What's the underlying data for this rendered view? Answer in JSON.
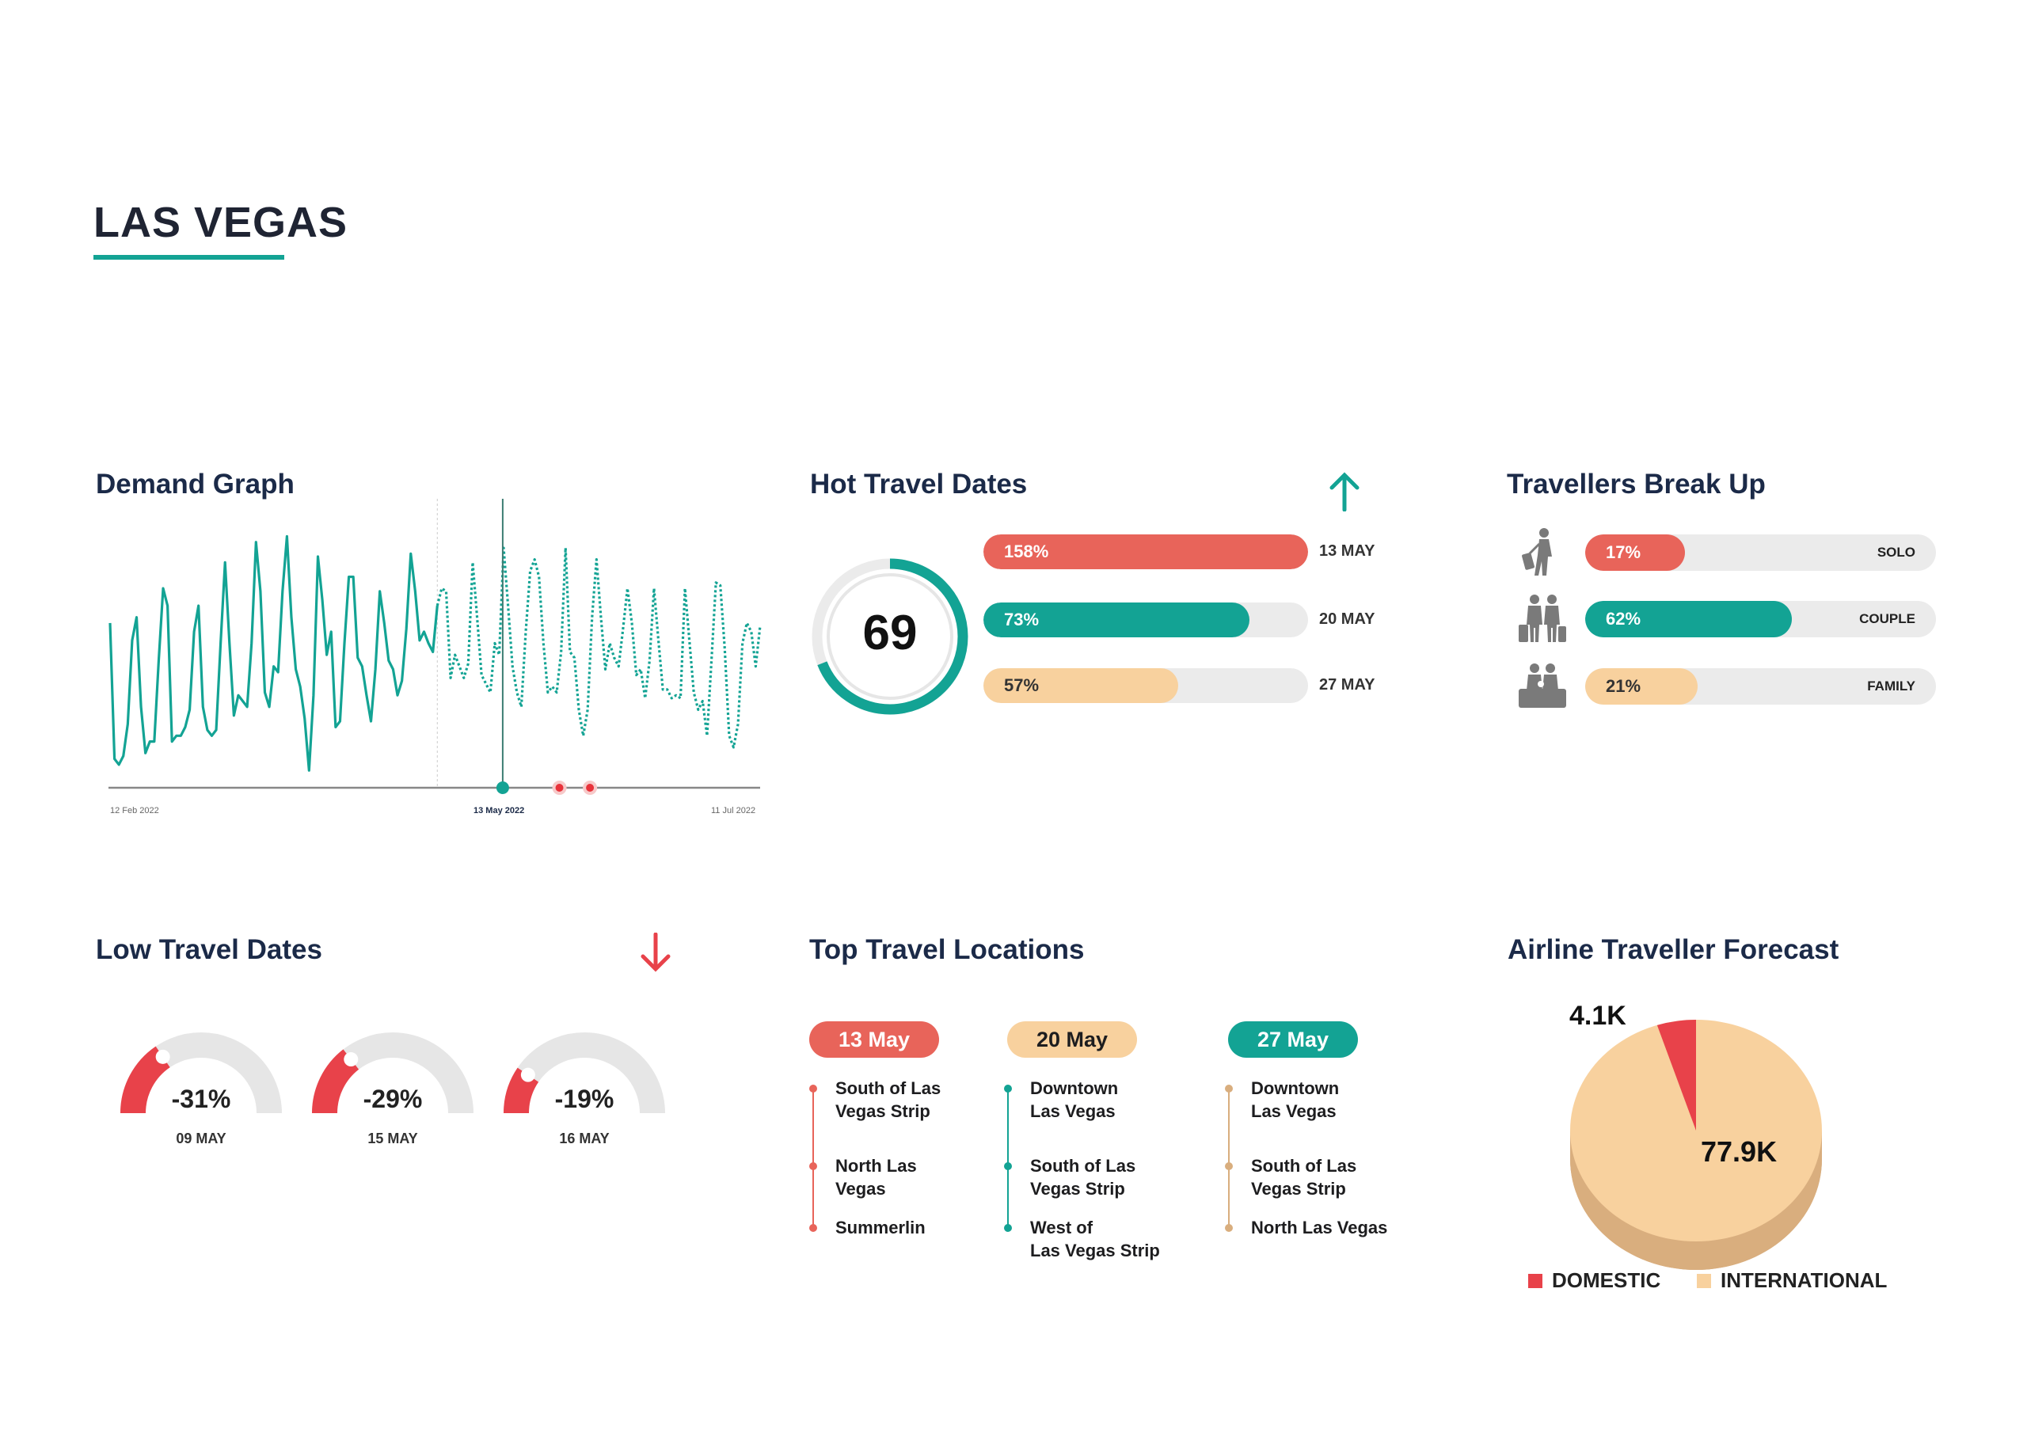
{
  "page": {
    "title": "LAS VEGAS"
  },
  "colors": {
    "teal": "#13A394",
    "red": "#E8645A",
    "deep_red": "#E8424A",
    "peach": "#F8D19E",
    "tan": "#D9AE7E",
    "track": "#EBEBEB",
    "navy": "#1B2A48",
    "icon_gray": "#7A7A7A"
  },
  "demand_graph": {
    "title": "Demand Graph",
    "chart_data": {
      "type": "line",
      "x_range": [
        "12 Feb 2022",
        "11 Jul 2022"
      ],
      "tick_labels": [
        "12 Feb 2022",
        "13 May 2022",
        "11 Jul 2022"
      ],
      "highlight_date": "13 May 2022",
      "markers": [
        {
          "date": "26 May 2022",
          "color": "red"
        },
        {
          "date": "2 Jun 2022",
          "color": "red"
        }
      ],
      "series": [
        {
          "style": "solid",
          "values": [
            57,
            10,
            8,
            11,
            22,
            51,
            59,
            28,
            12,
            16,
            16,
            44,
            69,
            63,
            16,
            18,
            18,
            21,
            27,
            54,
            63,
            28,
            20,
            18,
            20,
            50,
            78,
            50,
            25,
            32,
            30,
            28,
            50,
            85,
            68,
            33,
            28,
            42,
            40,
            68,
            87,
            59,
            41,
            35,
            24,
            6,
            32,
            80,
            65,
            46,
            54,
            21,
            23,
            50,
            73,
            73,
            45,
            42,
            32,
            23,
            41,
            68,
            57,
            44,
            41,
            32,
            37,
            55,
            81,
            68,
            51,
            54,
            50,
            47,
            63
          ]
        },
        {
          "style": "dotted",
          "values": [
            69,
            68,
            38,
            46,
            42,
            38,
            43,
            78,
            59,
            39,
            36,
            33,
            50,
            46,
            83,
            63,
            42,
            33,
            28,
            54,
            75,
            79,
            73,
            50,
            33,
            35,
            33,
            47,
            83,
            47,
            45,
            27,
            18,
            27,
            59,
            79,
            59,
            41,
            50,
            45,
            42,
            55,
            69,
            57,
            39,
            41,
            31,
            44,
            69,
            51,
            34,
            34,
            31,
            32,
            31,
            69,
            51,
            33,
            27,
            30,
            18,
            44,
            71,
            70,
            48,
            18,
            14,
            22,
            50,
            57,
            54,
            42,
            56
          ]
        }
      ],
      "ylim": [
        0,
        100
      ],
      "grid": false
    }
  },
  "hot_travel_dates": {
    "title": "Hot Travel Dates",
    "trend_icon": "arrow-up-icon",
    "score": "69",
    "score_fraction": 0.69,
    "bars": [
      {
        "label": "158%",
        "date": "13 MAY",
        "fill": 1.0,
        "color": "#E8645A"
      },
      {
        "label": "73%",
        "date": "20 MAY",
        "fill": 0.82,
        "color": "#13A394"
      },
      {
        "label": "57%",
        "date": "27 MAY",
        "fill": 0.6,
        "color": "#F8D19E"
      }
    ]
  },
  "travellers_break_up": {
    "title": "Travellers Break Up",
    "items": [
      {
        "label": "SOLO",
        "value": "17%",
        "fill": 0.285,
        "color": "#E8645A",
        "icon": "solo-traveller-icon"
      },
      {
        "label": "COUPLE",
        "value": "62%",
        "fill": 0.59,
        "color": "#13A394",
        "icon": "couple-traveller-icon"
      },
      {
        "label": "FAMILY",
        "value": "21%",
        "fill": 0.32,
        "color": "#F8D19E",
        "icon": "family-traveller-icon"
      }
    ]
  },
  "low_travel_dates": {
    "title": "Low Travel Dates",
    "trend_icon": "arrow-down-icon",
    "gauges": [
      {
        "value": "-31%",
        "date": "09 MAY",
        "level": 0.31
      },
      {
        "value": "-29%",
        "date": "15 MAY",
        "level": 0.29
      },
      {
        "value": "-19%",
        "date": "16 MAY",
        "level": 0.19
      }
    ]
  },
  "top_travel_locations": {
    "title": "Top Travel Locations",
    "columns": [
      {
        "date": "13 May",
        "pill_color": "#E8645A",
        "pill_text": "#ffffff",
        "line_color": "#E8645A",
        "locations": [
          "South of Las\nVegas Strip",
          "North Las\nVegas",
          "Summerlin"
        ]
      },
      {
        "date": "20  May",
        "pill_color": "#F8D19E",
        "pill_text": "#1d1d1f",
        "line_color": "#13A394",
        "locations": [
          "Downtown\nLas Vegas",
          "South of Las\nVegas Strip",
          "West of\nLas Vegas Strip"
        ]
      },
      {
        "date": "27 May",
        "pill_color": "#13A394",
        "pill_text": "#ffffff",
        "line_color": "#D9AE7E",
        "locations": [
          "Downtown\nLas Vegas",
          "South of Las\nVegas Strip",
          "North Las Vegas"
        ]
      }
    ]
  },
  "airline_forecast": {
    "title": "Airline Traveller Forecast",
    "chart_data": {
      "type": "pie",
      "slices": [
        {
          "name": "DOMESTIC",
          "value": 4.1,
          "label": "4.1K",
          "color": "#E8424A"
        },
        {
          "name": "INTERNATIONAL",
          "value": 77.9,
          "label": "77.9K",
          "color": "#F8D19E"
        }
      ],
      "legend": "bottom"
    }
  }
}
